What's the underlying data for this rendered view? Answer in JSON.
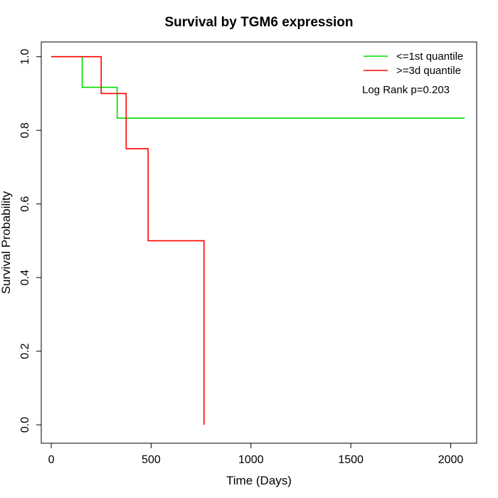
{
  "chart_data": {
    "type": "line",
    "title": "Survival by TGM6 expression",
    "xlabel": "Time (Days)",
    "ylabel": "Survival Probability",
    "xlim": [
      -50,
      2130
    ],
    "ylim": [
      -0.05,
      1.04
    ],
    "xticks": [
      0,
      500,
      1000,
      1500,
      2000
    ],
    "yticks": [
      0.0,
      0.2,
      0.4,
      0.6,
      0.8,
      1.0
    ],
    "xtick_labels": [
      "0",
      "500",
      "1000",
      "1500",
      "2000"
    ],
    "ytick_labels": [
      "0.0",
      "0.2",
      "0.4",
      "0.6",
      "0.8",
      "1.0"
    ],
    "series": [
      {
        "name": "<=1st quantile",
        "color": "#00dd00",
        "x": [
          0,
          155,
          330,
          2070
        ],
        "y": [
          1.0,
          0.917,
          0.833,
          0.833
        ]
      },
      {
        "name": ">=3d quantile",
        "color": "#ff0000",
        "x": [
          0,
          250,
          375,
          485,
          765
        ],
        "y": [
          1.0,
          0.9,
          0.75,
          0.5,
          0.0
        ]
      }
    ],
    "annotation": "Log Rank p=0.203",
    "legend_position": "top-right",
    "grid": false
  }
}
